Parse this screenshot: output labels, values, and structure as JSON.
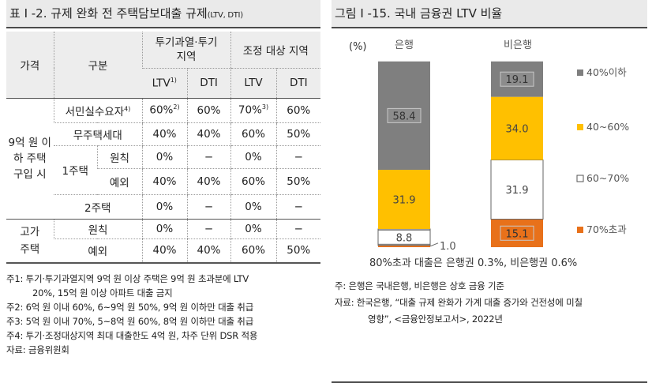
{
  "left": {
    "title": "표 I -2. 규제 완화 전 주택담보대출 규제",
    "title_suffix": "(LTV, DTI)",
    "table": {
      "h_price": "가격",
      "h_category": "구분",
      "h_speculation": "투기과열·투기 지역",
      "h_regulated": "조정 대상 지역",
      "h_ltv": "LTV",
      "h_ltv_note": "1)",
      "h_dti": "DTI",
      "h_ltv2": "LTV",
      "h_dti2": "DTI",
      "g1_label": "9억 원 이하 주택 구입 시",
      "g2_label": "고가 주택",
      "one_house": "1주택",
      "rows": [
        {
          "label": "서민실수요자",
          "label_note": "4)",
          "c1": "60%",
          "c1_note": "2)",
          "c2": "60%",
          "c3": "70%",
          "c3_note": "3)",
          "c4": "60%"
        },
        {
          "label": "무주택세대",
          "c1": "40%",
          "c2": "40%",
          "c3": "60%",
          "c4": "50%"
        },
        {
          "label": "원칙",
          "c1": "0%",
          "c2": "−",
          "c3": "0%",
          "c4": "−"
        },
        {
          "label": "예외",
          "c1": "40%",
          "c2": "40%",
          "c3": "60%",
          "c4": "50%"
        },
        {
          "label": "2주택",
          "c1": "0%",
          "c2": "−",
          "c3": "0%",
          "c4": "−"
        },
        {
          "label": "원칙",
          "c1": "0%",
          "c2": "−",
          "c3": "0%",
          "c4": "−"
        },
        {
          "label": "예외",
          "c1": "40%",
          "c2": "40%",
          "c3": "60%",
          "c4": "50%"
        }
      ]
    },
    "notes": {
      "n1a": "주1: 투기·투기과열지역 9억 원 이상 주택은 9억 원 초과분에 LTV",
      "n1b": "20%, 15억 원 이상 아파트 대출 금지",
      "n2": "주2: 6억 원 이내 60%, 6~9억 원 50%, 9억 원 이하만 대출 취급",
      "n3": "주3: 5억 원 이내 70%, 5~8억 원 60%, 8억 원 이하만 대출 취급",
      "n4": "주4: 투기·조정대상지역 최대 대출한도 4억 원, 차주 단위 DSR 적용",
      "source": "자료: 금융위원회"
    }
  },
  "right": {
    "title": "그림 I -15. 국내 금융권 LTV 비율",
    "notes": {
      "n1": "주: 은행은 국내은행, 비은행은 상호 금융 기준",
      "src_a": "자료: 한국은행, “대출 규제 완화가 가계 대출 증가와 건전성에 미칠",
      "src_b": "영향”, <금융안정보고서>, 2022년"
    }
  },
  "chart_data": {
    "type": "bar",
    "stacked": true,
    "unit_label": "(%)",
    "categories": [
      "은행",
      "비은행"
    ],
    "series": [
      {
        "name": "70%초과",
        "values": [
          1.0,
          15.1
        ],
        "color": "#e8711a"
      },
      {
        "name": "60~70%",
        "values": [
          8.8,
          31.9
        ],
        "color": "#ffffff"
      },
      {
        "name": "40~60%",
        "values": [
          31.9,
          34.0
        ],
        "color": "#ffc000"
      },
      {
        "name": "40%이하",
        "values": [
          58.4,
          19.1
        ],
        "color": "#7f7f7f"
      }
    ],
    "annotation": "80%초과 대출은 은행권 0.3%, 비은행권 0.6%",
    "legend_position": "right",
    "ylim": [
      0,
      100
    ]
  }
}
